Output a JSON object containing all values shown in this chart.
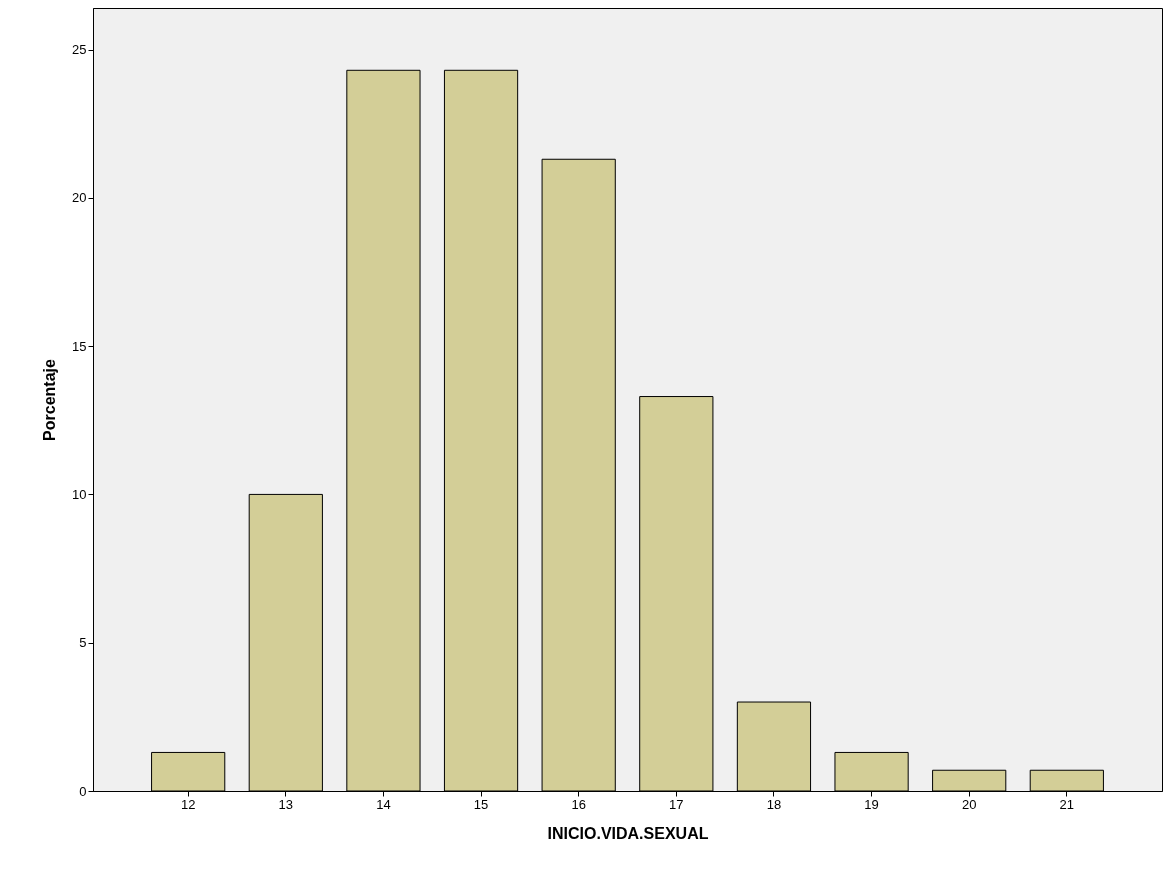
{
  "chart_data": {
    "type": "bar",
    "xlabel": "INICIO.VIDA.SEXUAL",
    "ylabel": "Porcentaje",
    "categories": [
      "12",
      "13",
      "14",
      "15",
      "16",
      "17",
      "18",
      "19",
      "20",
      "21"
    ],
    "values": [
      1.3,
      10,
      24.3,
      24.3,
      21.3,
      13.3,
      3,
      1.3,
      0.7,
      0.7
    ],
    "color": "#d3ce97",
    "ylim": [
      0,
      26.4
    ],
    "yticks": [
      0,
      5,
      10,
      15,
      20,
      25
    ],
    "grid": false
  }
}
